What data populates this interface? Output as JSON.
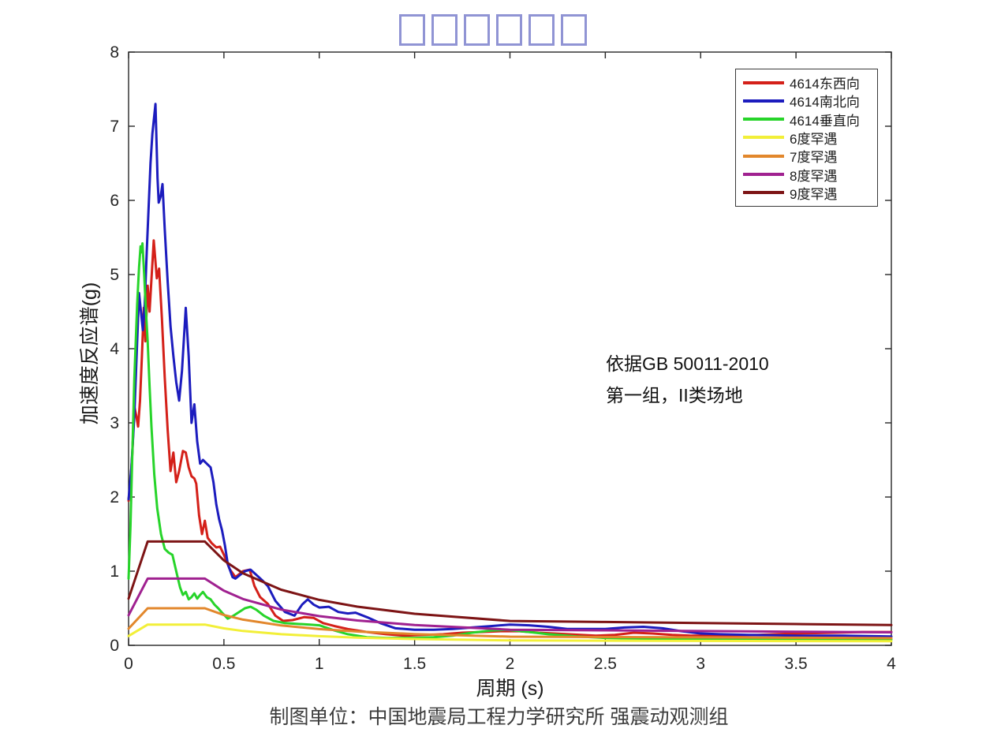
{
  "title": {
    "note": "title rendered as six missing-glyph boxes",
    "glyph_count": 6,
    "box_color": "#9094d4"
  },
  "annotation": {
    "line1": "依据GB 50011-2010",
    "line2": "第一组，II类场地"
  },
  "caption": "制图单位：中国地震局工程力学研究所 强震动观测组",
  "colors": {
    "axis": "#262626",
    "tick_label": "#262626",
    "legend_border": "#3a3a3a"
  },
  "chart_data": {
    "type": "line",
    "title": "□□□□□□",
    "xlabel": "周期 (s)",
    "ylabel": "加速度反应谱(g)",
    "xlim": [
      0,
      4
    ],
    "ylim": [
      0,
      8
    ],
    "xticks": [
      0,
      0.5,
      1,
      1.5,
      2,
      2.5,
      3,
      3.5,
      4
    ],
    "xtick_labels": [
      "0",
      "0.5",
      "1",
      "1.5",
      "2",
      "2.5",
      "3",
      "3.5",
      "4"
    ],
    "yticks": [
      0,
      1,
      2,
      3,
      4,
      5,
      6,
      7,
      8
    ],
    "ytick_labels": [
      "0",
      "1",
      "2",
      "3",
      "4",
      "5",
      "6",
      "7",
      "8"
    ],
    "grid": false,
    "legend_position": "upper right",
    "series": [
      {
        "name": "4614东西向",
        "color": "#d42019",
        "points": [
          [
            0,
            1.95
          ],
          [
            0.01,
            2.2
          ],
          [
            0.02,
            2.6
          ],
          [
            0.03,
            3.22
          ],
          [
            0.04,
            3.1
          ],
          [
            0.05,
            2.95
          ],
          [
            0.06,
            3.3
          ],
          [
            0.07,
            3.9
          ],
          [
            0.08,
            4.55
          ],
          [
            0.088,
            4.1
          ],
          [
            0.1,
            4.85
          ],
          [
            0.11,
            4.5
          ],
          [
            0.132,
            5.46
          ],
          [
            0.148,
            4.95
          ],
          [
            0.16,
            5.08
          ],
          [
            0.175,
            4.4
          ],
          [
            0.19,
            3.6
          ],
          [
            0.205,
            2.9
          ],
          [
            0.22,
            2.35
          ],
          [
            0.235,
            2.6
          ],
          [
            0.25,
            2.2
          ],
          [
            0.265,
            2.35
          ],
          [
            0.285,
            2.62
          ],
          [
            0.3,
            2.6
          ],
          [
            0.315,
            2.4
          ],
          [
            0.33,
            2.28
          ],
          [
            0.345,
            2.25
          ],
          [
            0.355,
            2.18
          ],
          [
            0.37,
            1.75
          ],
          [
            0.385,
            1.5
          ],
          [
            0.4,
            1.68
          ],
          [
            0.415,
            1.45
          ],
          [
            0.435,
            1.38
          ],
          [
            0.46,
            1.32
          ],
          [
            0.48,
            1.33
          ],
          [
            0.5,
            1.22
          ],
          [
            0.53,
            1.03
          ],
          [
            0.56,
            0.92
          ],
          [
            0.6,
            1.0
          ],
          [
            0.635,
            1.02
          ],
          [
            0.66,
            0.8
          ],
          [
            0.69,
            0.65
          ],
          [
            0.73,
            0.56
          ],
          [
            0.77,
            0.4
          ],
          [
            0.81,
            0.33
          ],
          [
            0.86,
            0.34
          ],
          [
            0.92,
            0.38
          ],
          [
            0.97,
            0.37
          ],
          [
            1.02,
            0.3
          ],
          [
            1.08,
            0.26
          ],
          [
            1.15,
            0.22
          ],
          [
            1.25,
            0.18
          ],
          [
            1.35,
            0.15
          ],
          [
            1.45,
            0.13
          ],
          [
            1.55,
            0.14
          ],
          [
            1.65,
            0.15
          ],
          [
            1.75,
            0.17
          ],
          [
            1.85,
            0.18
          ],
          [
            1.95,
            0.19
          ],
          [
            2.05,
            0.19
          ],
          [
            2.15,
            0.17
          ],
          [
            2.3,
            0.15
          ],
          [
            2.45,
            0.13
          ],
          [
            2.55,
            0.14
          ],
          [
            2.65,
            0.17
          ],
          [
            2.75,
            0.16
          ],
          [
            2.85,
            0.14
          ],
          [
            2.95,
            0.13
          ],
          [
            3.1,
            0.13
          ],
          [
            3.3,
            0.14
          ],
          [
            3.5,
            0.16
          ],
          [
            3.7,
            0.17
          ],
          [
            3.85,
            0.18
          ],
          [
            4,
            0.18
          ]
        ]
      },
      {
        "name": "4614南北向",
        "color": "#1c1cbe",
        "points": [
          [
            0,
            1.97
          ],
          [
            0.015,
            2.4
          ],
          [
            0.03,
            3.1
          ],
          [
            0.045,
            4.1
          ],
          [
            0.055,
            4.75
          ],
          [
            0.065,
            4.5
          ],
          [
            0.075,
            4.25
          ],
          [
            0.085,
            4.6
          ],
          [
            0.095,
            5.3
          ],
          [
            0.105,
            5.9
          ],
          [
            0.115,
            6.5
          ],
          [
            0.125,
            6.9
          ],
          [
            0.141,
            7.3
          ],
          [
            0.152,
            6.3
          ],
          [
            0.158,
            5.97
          ],
          [
            0.168,
            6.05
          ],
          [
            0.178,
            6.22
          ],
          [
            0.19,
            5.6
          ],
          [
            0.205,
            4.9
          ],
          [
            0.22,
            4.3
          ],
          [
            0.235,
            3.9
          ],
          [
            0.25,
            3.55
          ],
          [
            0.265,
            3.3
          ],
          [
            0.28,
            3.7
          ],
          [
            0.3,
            4.55
          ],
          [
            0.315,
            3.9
          ],
          [
            0.33,
            3.0
          ],
          [
            0.345,
            3.25
          ],
          [
            0.36,
            2.75
          ],
          [
            0.375,
            2.45
          ],
          [
            0.39,
            2.5
          ],
          [
            0.41,
            2.45
          ],
          [
            0.43,
            2.4
          ],
          [
            0.445,
            2.2
          ],
          [
            0.46,
            1.9
          ],
          [
            0.475,
            1.7
          ],
          [
            0.49,
            1.55
          ],
          [
            0.505,
            1.35
          ],
          [
            0.52,
            1.1
          ],
          [
            0.545,
            0.92
          ],
          [
            0.56,
            0.9
          ],
          [
            0.585,
            0.95
          ],
          [
            0.61,
            1.0
          ],
          [
            0.64,
            1.02
          ],
          [
            0.67,
            0.95
          ],
          [
            0.7,
            0.88
          ],
          [
            0.73,
            0.8
          ],
          [
            0.77,
            0.6
          ],
          [
            0.82,
            0.45
          ],
          [
            0.87,
            0.4
          ],
          [
            0.91,
            0.55
          ],
          [
            0.94,
            0.62
          ],
          [
            0.97,
            0.55
          ],
          [
            1.0,
            0.51
          ],
          [
            1.05,
            0.52
          ],
          [
            1.1,
            0.45
          ],
          [
            1.15,
            0.43
          ],
          [
            1.19,
            0.44
          ],
          [
            1.25,
            0.38
          ],
          [
            1.32,
            0.3
          ],
          [
            1.4,
            0.23
          ],
          [
            1.5,
            0.21
          ],
          [
            1.6,
            0.21
          ],
          [
            1.7,
            0.22
          ],
          [
            1.8,
            0.24
          ],
          [
            1.9,
            0.26
          ],
          [
            2.0,
            0.28
          ],
          [
            2.1,
            0.27
          ],
          [
            2.2,
            0.25
          ],
          [
            2.3,
            0.22
          ],
          [
            2.4,
            0.22
          ],
          [
            2.5,
            0.22
          ],
          [
            2.6,
            0.24
          ],
          [
            2.7,
            0.25
          ],
          [
            2.8,
            0.23
          ],
          [
            2.9,
            0.19
          ],
          [
            3.0,
            0.16
          ],
          [
            3.1,
            0.15
          ],
          [
            3.25,
            0.14
          ],
          [
            3.5,
            0.13
          ],
          [
            3.75,
            0.13
          ],
          [
            4,
            0.12
          ]
        ]
      },
      {
        "name": "4614垂直向",
        "color": "#27d42a",
        "points": [
          [
            0,
            0.9
          ],
          [
            0.01,
            1.6
          ],
          [
            0.02,
            2.6
          ],
          [
            0.03,
            3.6
          ],
          [
            0.045,
            4.6
          ],
          [
            0.055,
            5.1
          ],
          [
            0.063,
            5.38
          ],
          [
            0.068,
            5.3
          ],
          [
            0.073,
            5.42
          ],
          [
            0.082,
            5.0
          ],
          [
            0.09,
            4.55
          ],
          [
            0.1,
            4.1
          ],
          [
            0.11,
            3.5
          ],
          [
            0.12,
            2.95
          ],
          [
            0.135,
            2.3
          ],
          [
            0.15,
            1.85
          ],
          [
            0.17,
            1.5
          ],
          [
            0.19,
            1.3
          ],
          [
            0.21,
            1.25
          ],
          [
            0.23,
            1.22
          ],
          [
            0.25,
            1.0
          ],
          [
            0.27,
            0.78
          ],
          [
            0.285,
            0.68
          ],
          [
            0.3,
            0.72
          ],
          [
            0.315,
            0.62
          ],
          [
            0.33,
            0.65
          ],
          [
            0.345,
            0.7
          ],
          [
            0.36,
            0.63
          ],
          [
            0.375,
            0.68
          ],
          [
            0.39,
            0.72
          ],
          [
            0.41,
            0.65
          ],
          [
            0.43,
            0.62
          ],
          [
            0.45,
            0.55
          ],
          [
            0.47,
            0.5
          ],
          [
            0.49,
            0.44
          ],
          [
            0.52,
            0.36
          ],
          [
            0.55,
            0.4
          ],
          [
            0.58,
            0.45
          ],
          [
            0.61,
            0.5
          ],
          [
            0.64,
            0.52
          ],
          [
            0.67,
            0.48
          ],
          [
            0.71,
            0.4
          ],
          [
            0.76,
            0.33
          ],
          [
            0.82,
            0.3
          ],
          [
            0.88,
            0.29
          ],
          [
            0.95,
            0.28
          ],
          [
            1.0,
            0.27
          ],
          [
            1.08,
            0.2
          ],
          [
            1.15,
            0.15
          ],
          [
            1.25,
            0.11
          ],
          [
            1.35,
            0.1
          ],
          [
            1.5,
            0.1
          ],
          [
            1.6,
            0.11
          ],
          [
            1.7,
            0.13
          ],
          [
            1.8,
            0.17
          ],
          [
            1.9,
            0.2
          ],
          [
            1.98,
            0.21
          ],
          [
            2.1,
            0.18
          ],
          [
            2.2,
            0.15
          ],
          [
            2.35,
            0.12
          ],
          [
            2.5,
            0.1
          ],
          [
            2.7,
            0.09
          ],
          [
            3.0,
            0.08
          ],
          [
            3.3,
            0.08
          ],
          [
            3.6,
            0.08
          ],
          [
            4,
            0.08
          ]
        ]
      },
      {
        "name": "6度罕遇",
        "color": "#f2ef38",
        "points": [
          [
            0,
            0.126
          ],
          [
            0.1,
            0.28
          ],
          [
            0.4,
            0.28
          ],
          [
            0.5,
            0.229
          ],
          [
            0.6,
            0.194
          ],
          [
            0.8,
            0.15
          ],
          [
            1.0,
            0.123
          ],
          [
            1.2,
            0.104
          ],
          [
            1.5,
            0.085
          ],
          [
            2.0,
            0.066
          ],
          [
            2.5,
            0.063
          ],
          [
            3.0,
            0.06
          ],
          [
            3.5,
            0.057
          ],
          [
            4,
            0.055
          ]
        ]
      },
      {
        "name": "7度罕遇",
        "color": "#e2872c",
        "points": [
          [
            0,
            0.225
          ],
          [
            0.1,
            0.5
          ],
          [
            0.4,
            0.5
          ],
          [
            0.5,
            0.409
          ],
          [
            0.6,
            0.347
          ],
          [
            0.8,
            0.268
          ],
          [
            1.0,
            0.219
          ],
          [
            1.2,
            0.186
          ],
          [
            1.5,
            0.152
          ],
          [
            2.0,
            0.117
          ],
          [
            2.5,
            0.112
          ],
          [
            3.0,
            0.107
          ],
          [
            3.5,
            0.102
          ],
          [
            4,
            0.097
          ]
        ]
      },
      {
        "name": "8度罕遇",
        "color": "#a02190",
        "points": [
          [
            0,
            0.405
          ],
          [
            0.1,
            0.9
          ],
          [
            0.4,
            0.9
          ],
          [
            0.5,
            0.736
          ],
          [
            0.6,
            0.625
          ],
          [
            0.8,
            0.482
          ],
          [
            1.0,
            0.394
          ],
          [
            1.2,
            0.335
          ],
          [
            1.5,
            0.274
          ],
          [
            2.0,
            0.211
          ],
          [
            2.5,
            0.202
          ],
          [
            3.0,
            0.193
          ],
          [
            3.5,
            0.184
          ],
          [
            4,
            0.175
          ]
        ]
      },
      {
        "name": "9度罕遇",
        "color": "#7d1415",
        "points": [
          [
            0,
            0.63
          ],
          [
            0.1,
            1.4
          ],
          [
            0.4,
            1.4
          ],
          [
            0.5,
            1.145
          ],
          [
            0.6,
            0.972
          ],
          [
            0.8,
            0.75
          ],
          [
            1.0,
            0.613
          ],
          [
            1.2,
            0.521
          ],
          [
            1.5,
            0.426
          ],
          [
            2.0,
            0.329
          ],
          [
            2.5,
            0.315
          ],
          [
            3.0,
            0.301
          ],
          [
            3.5,
            0.287
          ],
          [
            4,
            0.273
          ]
        ]
      }
    ]
  }
}
